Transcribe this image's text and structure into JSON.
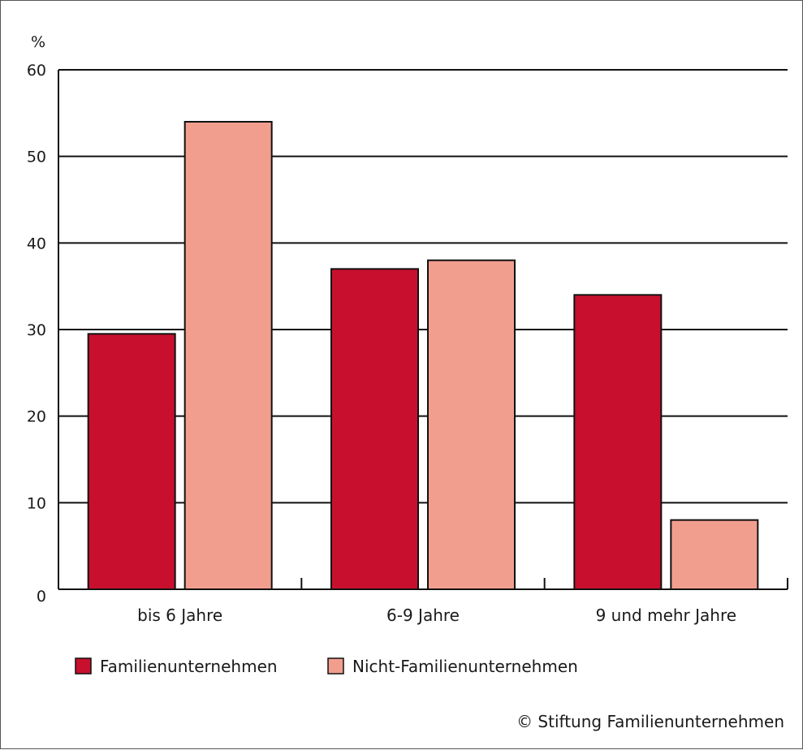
{
  "chart_data": {
    "type": "bar",
    "ylabel": "%",
    "ylim": [
      0,
      60
    ],
    "yticks": [
      0,
      10,
      20,
      30,
      40,
      50,
      60
    ],
    "grid": true,
    "categories": [
      "bis 6 Jahre",
      "6-9 Jahre",
      "9 und mehr Jahre"
    ],
    "series": [
      {
        "name": "Familienunternehmen",
        "color": "#c8102e",
        "values": [
          29.5,
          37,
          34
        ]
      },
      {
        "name": "Nicht-Familienunternehmen",
        "color": "#f29e8e",
        "values": [
          54,
          38,
          8
        ]
      }
    ],
    "legend_position": "bottom-left",
    "annotation": "© Stiftung Familienunternehmen"
  }
}
